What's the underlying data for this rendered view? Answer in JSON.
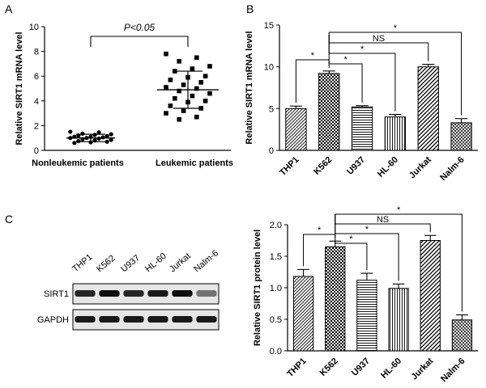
{
  "panels": {
    "A": {
      "letter": "A",
      "chart_data": {
        "type": "scatter",
        "ylabel": "Relative SIRT1 mRNA level",
        "ylim": [
          0,
          10
        ],
        "yticks": [
          0,
          2,
          4,
          6,
          8,
          10
        ],
        "categories": [
          "Nonleukemic patients",
          "Leukemic patients"
        ],
        "groups": [
          {
            "name": "Nonleukemic patients",
            "mean": 1.0,
            "sd": 0.3,
            "points": [
              1.5,
              1.45,
              1.35,
              1.3,
              1.25,
              1.2,
              1.15,
              1.1,
              1.1,
              1.05,
              1.0,
              1.0,
              0.95,
              0.9,
              0.85,
              0.8,
              0.75,
              0.7,
              0.65,
              0.6
            ]
          },
          {
            "name": "Leukemic patients",
            "mean": 4.9,
            "sd": 1.5,
            "points": [
              7.8,
              7.5,
              7.2,
              6.8,
              6.6,
              6.4,
              6.0,
              5.9,
              5.7,
              5.5,
              5.3,
              5.1,
              5.0,
              4.8,
              4.6,
              4.4,
              4.2,
              4.0,
              3.9,
              3.6,
              3.4,
              3.2,
              3.0,
              2.7,
              2.5
            ]
          }
        ],
        "annotation": "P<0.05"
      }
    },
    "B": {
      "letter": "B",
      "chart_data": {
        "type": "bar",
        "ylabel": "Relative SIRT1 mRNA level",
        "ylim": [
          0,
          15
        ],
        "yticks": [
          0,
          5,
          10,
          15
        ],
        "categories": [
          "THP1",
          "K562",
          "U937",
          "HL-60",
          "Jurkat",
          "Nalm-6"
        ],
        "values": [
          5.0,
          9.2,
          5.2,
          4.0,
          10.0,
          3.3
        ],
        "errors": [
          0.3,
          0.3,
          0.15,
          0.3,
          0.3,
          0.5
        ],
        "brackets": [
          {
            "from": 0,
            "to": 1,
            "label": "*"
          },
          {
            "from": 1,
            "to": 2,
            "label": "*"
          },
          {
            "from": 1,
            "to": 3,
            "label": "*"
          },
          {
            "from": 1,
            "to": 4,
            "label": "NS"
          },
          {
            "from": 1,
            "to": 5,
            "label": "*"
          }
        ]
      }
    },
    "C": {
      "letter": "C",
      "blot": {
        "lanes": [
          "THP1",
          "K562",
          "U937",
          "HL-60",
          "Jurkat",
          "Nalm-6"
        ],
        "rows": [
          {
            "label": "SIRT1",
            "intensity": [
              0.85,
              0.95,
              0.85,
              0.9,
              0.95,
              0.55
            ]
          },
          {
            "label": "GAPDH",
            "intensity": [
              0.9,
              0.9,
              0.9,
              0.9,
              0.9,
              0.9
            ]
          }
        ]
      },
      "chart_data": {
        "type": "bar",
        "ylabel": "Relative SIRT1 protein level",
        "ylim": [
          0,
          2.0
        ],
        "yticks": [
          "0.0",
          "0.5",
          "1.0",
          "1.5",
          "2.0"
        ],
        "categories": [
          "THP1",
          "K562",
          "U937",
          "HL-60",
          "Jurkat",
          "Nalm-6"
        ],
        "values": [
          1.18,
          1.65,
          1.12,
          0.99,
          1.75,
          0.49
        ],
        "errors": [
          0.11,
          0.09,
          0.11,
          0.07,
          0.08,
          0.08
        ],
        "brackets": [
          {
            "from": 0,
            "to": 1,
            "label": "*"
          },
          {
            "from": 1,
            "to": 2,
            "label": "*"
          },
          {
            "from": 1,
            "to": 3,
            "label": "*"
          },
          {
            "from": 1,
            "to": 4,
            "label": "NS"
          },
          {
            "from": 1,
            "to": 5,
            "label": "*"
          }
        ]
      }
    }
  }
}
